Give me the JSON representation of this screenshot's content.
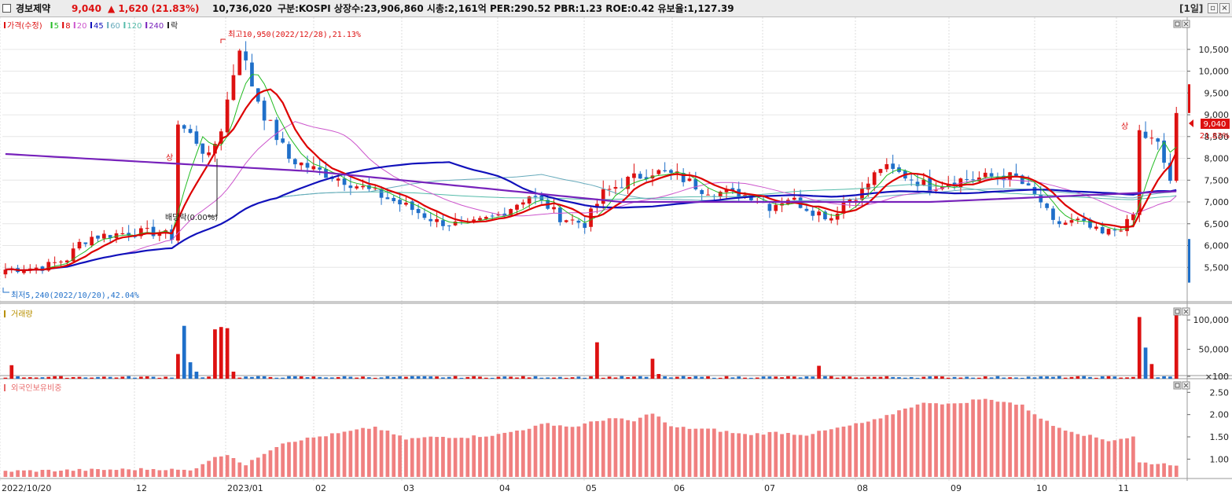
{
  "titlebar": {
    "name": "경보제약",
    "price": "9,040",
    "change": "▲ 1,620 (21.83%)",
    "volume": "10,736,020",
    "info": "구분:KOSPI 상장수:23,906,860 시총:2,161억 PER:290.52 PBR:1.23 ROE:0.42 유보율:1,127.39",
    "period": "[1일]"
  },
  "colors": {
    "up": "#dd1111",
    "down": "#1f6fc9",
    "ma5": "#22bb22",
    "ma8": "#dd0000",
    "ma20": "#cc55cc",
    "ma45": "#1111bb",
    "ma60": "#66aabb",
    "ma120": "#55bbaa",
    "ma240": "#7722bb"
  },
  "chart_data": [
    {
      "type": "candlestick",
      "title": "",
      "legend": [
        {
          "label": "가격(수정)",
          "color": "#dd1111"
        },
        {
          "label": "5",
          "color": "#22bb22"
        },
        {
          "label": "8",
          "color": "#dd0000"
        },
        {
          "label": "20",
          "color": "#cc55cc"
        },
        {
          "label": "45",
          "color": "#1111bb"
        },
        {
          "label": "60",
          "color": "#66aabb"
        },
        {
          "label": "120",
          "color": "#55bbaa"
        },
        {
          "label": "240",
          "color": "#7722bb"
        },
        {
          "label": "락",
          "color": "#222222"
        }
      ],
      "y_ticks": [
        10500,
        10000,
        9500,
        9000,
        8500,
        8000,
        7500,
        7000,
        6500,
        6000,
        5500
      ],
      "ylim": [
        5000,
        11200
      ],
      "x_ticks": [
        "2022/10/20",
        "12",
        "2023/01",
        "02",
        "03",
        "04",
        "05",
        "06",
        "07",
        "08",
        "09",
        "10",
        "11"
      ],
      "current_price": "9,040",
      "current_change": "21.83%",
      "annotations": {
        "high": "최고10,950(2022/12/28),21.13%",
        "low": "최저5,240(2022/10/20),42.04%",
        "dividend": "배당락(0.00%)",
        "limit_up_1": "상",
        "limit_up_2": "상"
      },
      "anchors": [
        [
          0,
          5450
        ],
        [
          6,
          5500
        ],
        [
          10,
          5700
        ],
        [
          12,
          6050
        ],
        [
          14,
          6200
        ],
        [
          20,
          6300
        ],
        [
          25,
          6300
        ],
        [
          27,
          6200
        ],
        [
          28,
          8800
        ],
        [
          31,
          8400
        ],
        [
          33,
          8000
        ],
        [
          35,
          8700
        ],
        [
          38,
          10600
        ],
        [
          40,
          9700
        ],
        [
          42,
          9000
        ],
        [
          46,
          8000
        ],
        [
          50,
          7750
        ],
        [
          55,
          7500
        ],
        [
          60,
          7200
        ],
        [
          65,
          6900
        ],
        [
          70,
          6550
        ],
        [
          75,
          6450
        ],
        [
          80,
          6700
        ],
        [
          85,
          7150
        ],
        [
          88,
          6900
        ],
        [
          90,
          6650
        ],
        [
          94,
          6500
        ],
        [
          97,
          7200
        ],
        [
          101,
          7500
        ],
        [
          105,
          7700
        ],
        [
          109,
          7600
        ],
        [
          113,
          7300
        ],
        [
          117,
          7200
        ],
        [
          121,
          7150
        ],
        [
          124,
          6900
        ],
        [
          127,
          7100
        ],
        [
          131,
          6800
        ],
        [
          134,
          6650
        ],
        [
          136,
          7000
        ],
        [
          139,
          7250
        ],
        [
          142,
          7800
        ],
        [
          146,
          7600
        ],
        [
          150,
          7350
        ],
        [
          154,
          7500
        ],
        [
          158,
          7550
        ],
        [
          162,
          7600
        ],
        [
          164,
          7550
        ],
        [
          168,
          7000
        ],
        [
          170,
          6500
        ],
        [
          174,
          6550
        ],
        [
          178,
          6250
        ],
        [
          182,
          6500
        ],
        [
          183,
          6700
        ],
        [
          184,
          8600
        ],
        [
          187,
          8300
        ],
        [
          189,
          7500
        ],
        [
          190,
          9040
        ]
      ],
      "ma240": [
        [
          0,
          8100
        ],
        [
          50,
          7700
        ],
        [
          100,
          7000
        ],
        [
          150,
          7000
        ],
        [
          191,
          7250
        ]
      ]
    },
    {
      "type": "bar",
      "title": "거래량",
      "y_ticks": [
        "100,000",
        "50,000",
        "×100"
      ],
      "ylim": [
        0,
        115000
      ],
      "spikes": [
        [
          1,
          23000
        ],
        [
          28,
          42000
        ],
        [
          29,
          90000
        ],
        [
          30,
          28000
        ],
        [
          31,
          12000
        ],
        [
          34,
          84000
        ],
        [
          35,
          88000
        ],
        [
          36,
          86000
        ],
        [
          37,
          12000
        ],
        [
          96,
          62000
        ],
        [
          105,
          34000
        ],
        [
          106,
          8000
        ],
        [
          132,
          22000
        ],
        [
          184,
          105000
        ],
        [
          185,
          53000
        ],
        [
          186,
          25000
        ],
        [
          190,
          108000
        ]
      ]
    },
    {
      "type": "bar",
      "title": "외국인보유비중",
      "y_ticks": [
        "2.50",
        "2.00",
        "1.50",
        "1.00"
      ],
      "ylim": [
        0.6,
        2.7
      ],
      "anchors": [
        [
          0,
          0.73
        ],
        [
          25,
          0.78
        ],
        [
          30,
          0.74
        ],
        [
          33,
          0.98
        ],
        [
          36,
          1.12
        ],
        [
          39,
          0.86
        ],
        [
          42,
          1.14
        ],
        [
          45,
          1.37
        ],
        [
          55,
          1.6
        ],
        [
          60,
          1.72
        ],
        [
          65,
          1.45
        ],
        [
          70,
          1.5
        ],
        [
          75,
          1.5
        ],
        [
          80,
          1.55
        ],
        [
          85,
          1.7
        ],
        [
          88,
          1.8
        ],
        [
          92,
          1.72
        ],
        [
          98,
          1.92
        ],
        [
          102,
          1.85
        ],
        [
          105,
          2.05
        ],
        [
          108,
          1.72
        ],
        [
          115,
          1.66
        ],
        [
          120,
          1.55
        ],
        [
          125,
          1.6
        ],
        [
          130,
          1.55
        ],
        [
          137,
          1.75
        ],
        [
          142,
          1.9
        ],
        [
          146,
          2.15
        ],
        [
          150,
          2.28
        ],
        [
          154,
          2.23
        ],
        [
          158,
          2.35
        ],
        [
          162,
          2.3
        ],
        [
          165,
          2.2
        ],
        [
          170,
          1.75
        ],
        [
          175,
          1.55
        ],
        [
          179,
          1.42
        ],
        [
          183,
          1.5
        ],
        [
          184,
          0.92
        ],
        [
          190,
          0.88
        ]
      ]
    }
  ]
}
